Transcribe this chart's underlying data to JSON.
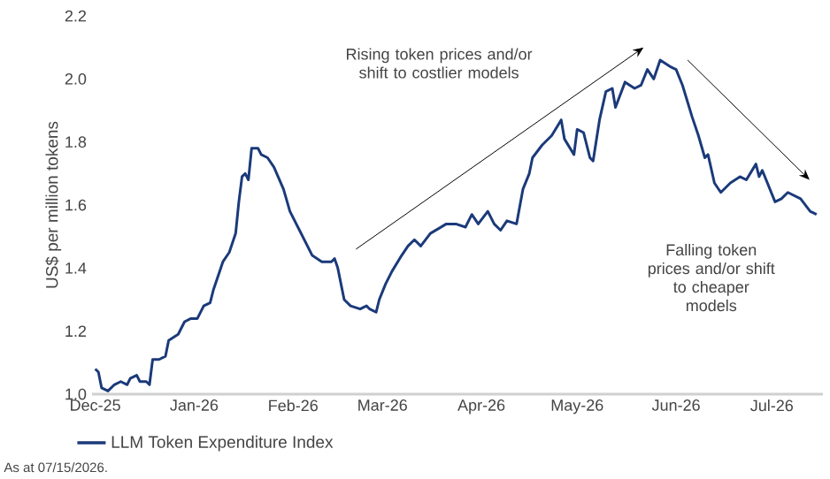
{
  "chart_data": {
    "type": "line",
    "ylabel": "US$ per million tokens",
    "legend": "bottom",
    "xlim": [
      "2025-11-30",
      "2026-07-17"
    ],
    "xticks": [
      {
        "value": "2025-12-01",
        "label": "Dec-25"
      },
      {
        "value": "2026-01-01",
        "label": "Jan-26"
      },
      {
        "value": "2026-02-01",
        "label": "Feb-26"
      },
      {
        "value": "2026-03-01",
        "label": "Mar-26"
      },
      {
        "value": "2026-04-01",
        "label": "Apr-26"
      },
      {
        "value": "2026-05-01",
        "label": "May-26"
      },
      {
        "value": "2026-06-01",
        "label": "Jun-26"
      },
      {
        "value": "2026-07-01",
        "label": "Jul-26"
      }
    ],
    "ylim": [
      1.0,
      2.2
    ],
    "yticks": [
      {
        "value": 1.0,
        "label": "1.0"
      },
      {
        "value": 1.2,
        "label": "1.2"
      },
      {
        "value": 1.4,
        "label": "1.4"
      },
      {
        "value": 1.6,
        "label": "1.6"
      },
      {
        "value": 1.8,
        "label": "1.8"
      },
      {
        "value": 2.0,
        "label": "2.0"
      },
      {
        "value": 2.2,
        "label": "2.2"
      }
    ],
    "x": [
      "2025-12-01",
      "2025-12-02",
      "2025-12-03",
      "2025-12-05",
      "2025-12-07",
      "2025-12-09",
      "2025-12-11",
      "2025-12-12",
      "2025-12-14",
      "2025-12-15",
      "2025-12-17",
      "2025-12-18",
      "2025-12-19",
      "2025-12-21",
      "2025-12-23",
      "2025-12-24",
      "2025-12-27",
      "2025-12-29",
      "2025-12-31",
      "2026-01-02",
      "2026-01-03",
      "2026-01-04",
      "2026-01-06",
      "2026-01-07",
      "2026-01-09",
      "2026-01-10",
      "2026-01-12",
      "2026-01-14",
      "2026-01-15",
      "2026-01-16",
      "2026-01-17",
      "2026-01-18",
      "2026-01-19",
      "2026-01-21",
      "2026-01-22",
      "2026-01-24",
      "2026-01-26",
      "2026-01-29",
      "2026-01-31",
      "2026-02-03",
      "2026-02-05",
      "2026-02-07",
      "2026-02-10",
      "2026-02-13",
      "2026-02-14",
      "2026-02-15",
      "2026-02-17",
      "2026-02-19",
      "2026-02-22",
      "2026-02-24",
      "2026-02-25",
      "2026-02-27",
      "2026-02-28",
      "2026-03-02",
      "2026-03-04",
      "2026-03-07",
      "2026-03-09",
      "2026-03-11",
      "2026-03-13",
      "2026-03-16",
      "2026-03-21",
      "2026-03-24",
      "2026-03-27",
      "2026-03-29",
      "2026-03-31",
      "2026-04-03",
      "2026-04-05",
      "2026-04-07",
      "2026-04-09",
      "2026-04-12",
      "2026-04-14",
      "2026-04-16",
      "2026-04-17",
      "2026-04-20",
      "2026-04-23",
      "2026-04-26",
      "2026-04-27",
      "2026-04-30",
      "2026-05-01",
      "2026-05-03",
      "2026-05-05",
      "2026-05-06",
      "2026-05-08",
      "2026-05-10",
      "2026-05-12",
      "2026-05-13",
      "2026-05-16",
      "2026-05-19",
      "2026-05-21",
      "2026-05-23",
      "2026-05-25",
      "2026-05-27",
      "2026-05-30",
      "2026-06-01",
      "2026-06-03",
      "2026-06-06",
      "2026-06-08",
      "2026-06-10",
      "2026-06-11",
      "2026-06-13",
      "2026-06-15",
      "2026-06-18",
      "2026-06-21",
      "2026-06-23",
      "2026-06-26",
      "2026-06-27",
      "2026-06-28",
      "2026-07-02",
      "2026-07-04",
      "2026-07-06",
      "2026-07-10",
      "2026-07-13",
      "2026-07-15"
    ],
    "series": [
      {
        "name": "LLM Token Expenditure Index",
        "color": "#1b3a7a",
        "values": [
          1.08,
          1.07,
          1.02,
          1.01,
          1.03,
          1.04,
          1.03,
          1.05,
          1.06,
          1.04,
          1.04,
          1.03,
          1.11,
          1.11,
          1.12,
          1.17,
          1.19,
          1.23,
          1.24,
          1.24,
          1.26,
          1.28,
          1.29,
          1.33,
          1.39,
          1.42,
          1.45,
          1.51,
          1.61,
          1.69,
          1.7,
          1.68,
          1.78,
          1.78,
          1.76,
          1.75,
          1.72,
          1.65,
          1.58,
          1.52,
          1.48,
          1.44,
          1.42,
          1.42,
          1.43,
          1.4,
          1.3,
          1.28,
          1.27,
          1.28,
          1.27,
          1.26,
          1.3,
          1.35,
          1.39,
          1.44,
          1.47,
          1.49,
          1.47,
          1.51,
          1.54,
          1.54,
          1.53,
          1.57,
          1.54,
          1.58,
          1.54,
          1.52,
          1.55,
          1.54,
          1.65,
          1.7,
          1.75,
          1.79,
          1.82,
          1.87,
          1.81,
          1.76,
          1.84,
          1.83,
          1.75,
          1.74,
          1.87,
          1.96,
          1.97,
          1.91,
          1.99,
          1.97,
          1.98,
          2.03,
          2.0,
          2.06,
          2.04,
          2.03,
          1.98,
          1.88,
          1.82,
          1.75,
          1.76,
          1.67,
          1.64,
          1.67,
          1.69,
          1.68,
          1.73,
          1.69,
          1.71,
          1.61,
          1.62,
          1.64,
          1.62,
          1.58,
          1.57
        ]
      }
    ],
    "annotations": [
      "Rising token prices and/or shift to costlier models",
      "Falling token prices and/or shift to cheaper models",
      "As at 07/15/2026."
    ]
  }
}
